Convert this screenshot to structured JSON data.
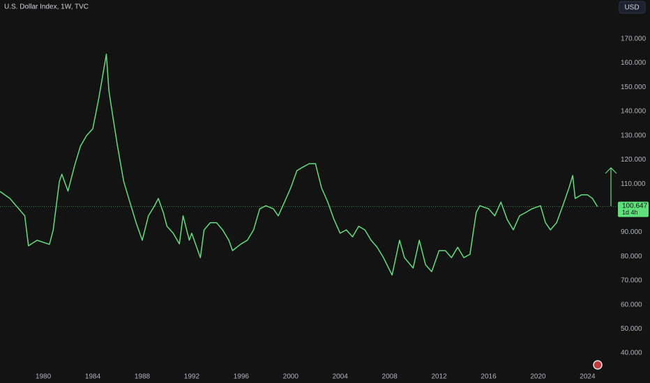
{
  "chart_data": {
    "type": "line",
    "title": "U.S. Dollar Index, 1W, TVC",
    "currency": "USD",
    "color": "#5ee07a",
    "x": [
      1976.5,
      1977.3,
      1978.5,
      1978.8,
      1979.5,
      1980.5,
      1980.8,
      1981.3,
      1981.5,
      1982,
      1982.5,
      1983,
      1983.5,
      1984,
      1984.5,
      1985.1,
      1985.3,
      1985.6,
      1986,
      1986.5,
      1987,
      1987.5,
      1988,
      1988.5,
      1989,
      1989.3,
      1989.7,
      1990,
      1990.5,
      1991,
      1991.3,
      1991.8,
      1992,
      1992.7,
      1993,
      1993.5,
      1994,
      1994.5,
      1995,
      1995.3,
      1996,
      1996.5,
      1997,
      1997.5,
      1998,
      1998.6,
      1999,
      1999.5,
      2000,
      2000.5,
      2001,
      2001.5,
      2002,
      2002.5,
      2003,
      2003.5,
      2004,
      2004.5,
      2005,
      2005.5,
      2006,
      2006.5,
      2007,
      2007.5,
      2008.2,
      2008.8,
      2009.2,
      2009.9,
      2010.4,
      2010.9,
      2011.4,
      2012,
      2012.5,
      2013,
      2013.5,
      2014,
      2014.5,
      2015,
      2015.3,
      2016,
      2016.5,
      2017,
      2017.5,
      2018,
      2018.5,
      2019,
      2019.5,
      2020.2,
      2020.6,
      2021,
      2021.5,
      2022,
      2022.5,
      2022.8,
      2023,
      2023.5,
      2024,
      2024.4,
      2024.8
    ],
    "values": [
      106.9,
      104,
      96.8,
      84.4,
      86.7,
      85,
      91,
      111,
      114,
      107,
      117,
      125.6,
      130,
      132.8,
      145.8,
      163.7,
      148.7,
      138.6,
      125.6,
      111,
      102.5,
      94,
      86.7,
      96.8,
      101,
      104,
      98.2,
      92.5,
      89.6,
      85.2,
      96.8,
      86.7,
      89.6,
      79.5,
      91,
      94,
      94,
      91,
      86.7,
      82.4,
      85.2,
      86.7,
      91,
      99.7,
      101,
      99.7,
      96.8,
      102.5,
      108.3,
      115.5,
      117,
      118.4,
      118.4,
      108.3,
      102.5,
      95.3,
      89.6,
      91,
      88.1,
      92.5,
      91,
      86.7,
      83.8,
      79.5,
      72.3,
      86.7,
      79.5,
      75.2,
      86.7,
      76.6,
      73.7,
      82.4,
      82.4,
      79.5,
      83.8,
      79.5,
      80.9,
      98.2,
      101,
      99.7,
      96.8,
      102.5,
      95.3,
      91,
      96.8,
      98.2,
      99.7,
      101,
      94,
      91,
      94,
      101,
      108.3,
      113.5,
      104,
      105.5,
      105.5,
      104,
      100.647
    ],
    "price_label": {
      "value": 100.647,
      "countdown": "1d 4h"
    },
    "xlim": [
      1976.5,
      2026.4
    ],
    "xticks": [
      1980,
      1984,
      1988,
      1992,
      1996,
      2000,
      2004,
      2008,
      2012,
      2016,
      2020,
      2024
    ],
    "ylim": [
      33.4,
      186.1
    ],
    "yticks": [
      {
        "value": 40,
        "label": "40.000"
      },
      {
        "value": 50,
        "label": "50.000"
      },
      {
        "value": 60,
        "label": "60.000"
      },
      {
        "value": 70,
        "label": "70.000"
      },
      {
        "value": 80,
        "label": "80.000"
      },
      {
        "value": 90,
        "label": "90.000"
      },
      {
        "value": 110,
        "label": "110.000"
      },
      {
        "value": 120,
        "label": "120.000"
      },
      {
        "value": 130,
        "label": "130.000"
      },
      {
        "value": 140,
        "label": "140.000"
      },
      {
        "value": 150,
        "label": "150.000"
      },
      {
        "value": 160,
        "label": "160.000"
      },
      {
        "value": 170,
        "label": "170.000"
      }
    ]
  }
}
